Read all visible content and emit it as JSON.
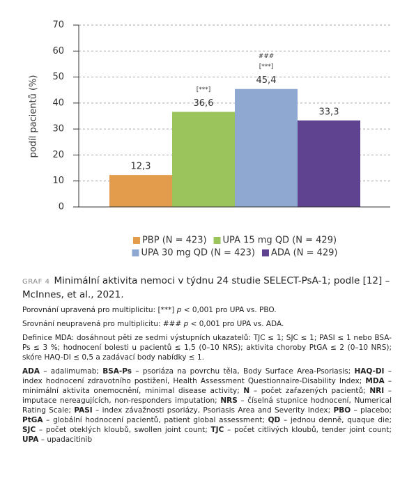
{
  "chart_data": {
    "type": "bar",
    "ylabel": "podíl pacientů (%)",
    "categories": [
      "PBP (N = 423)",
      "UPA 15 mg QD (N = 429)",
      "UPA 30 mg QD (N = 423)",
      "ADA (N = 429)"
    ],
    "values": [
      12.3,
      36.6,
      45.4,
      33.3
    ],
    "value_labels": [
      "12,3",
      "36,6",
      "45,4",
      "33,3"
    ],
    "colors": [
      "#e39b4c",
      "#9cc45c",
      "#8ea8d2",
      "#5f4290"
    ],
    "annotations": [
      null,
      [
        "[***]"
      ],
      [
        "###",
        "[***]"
      ],
      null
    ],
    "ylim": [
      0,
      70
    ],
    "yticks": [
      0,
      10,
      20,
      30,
      40,
      50,
      60,
      70
    ],
    "grid": true
  },
  "caption": {
    "label": "GRAF 4",
    "title": "Minimální aktivita nemoci v týdnu 24 studie SELECT-PsA-1; podle [12] – McInnes, et al., 2021.",
    "notes": [
      {
        "before": "Porovnání upravená pro multiplicitu: [***] ",
        "italic": "p",
        "after": " < 0,001 pro UPA vs. PBO."
      },
      {
        "before": "Srovnání neupravená pro multiplicitu: ### ",
        "italic": "p",
        "after": " < 0,001 pro UPA vs. ADA."
      }
    ],
    "definition": "Definice MDA: dosáhnout pěti ze sedmi výstupních ukazatelů: TJC ≤ 1; SJC ≤ 1; PASI ≤ 1 nebo BSA-Ps ≤ 3 %; hodnocení bolesti u pacientů ≤ 1,5 (0–10 NRS); aktivita choroby PtGA ≤ 2 (0–10 NRS); skóre HAQ-DI ≤ 0,5 a zadávací body nabídky ≤ 1.",
    "glossary": [
      {
        "term": "ADA",
        "text": " – adalimumab; "
      },
      {
        "term": "BSA-Ps",
        "text": " – psoriáza na povrchu těla, Body Surface Area-Psoriasis; "
      },
      {
        "term": "HAQ-DI",
        "text": " – index hodnocení zdravotního postižení, Health Assessment Questionnaire-Disability Index; "
      },
      {
        "term": "MDA",
        "text": " – minimální aktivita onemocnění, minimal disease activity; "
      },
      {
        "term": "N",
        "text": " – počet zařazených pacientů; "
      },
      {
        "term": "NRI",
        "text": " – imputace nereagujících, non-responders imputation; "
      },
      {
        "term": "NRS",
        "text": " – číselná stupnice hodnocení, Numerical Rating Scale; "
      },
      {
        "term": "PASI",
        "text": " – index závažnosti psoriázy, Psoriasis Area and Severity Index; "
      },
      {
        "term": "PBO",
        "text": " – placebo; "
      },
      {
        "term": "PtGA",
        "text": " – globální hodnocení pacientů, patient global assessment; "
      },
      {
        "term": "QD",
        "text": " – jednou denně, quaque die; "
      },
      {
        "term": "SJC",
        "text": " – počet oteklých kloubů, swollen joint count; "
      },
      {
        "term": "TJC",
        "text": " – počet citlivých kloubů, tender joint count; "
      },
      {
        "term": "UPA",
        "text": " – upadacitinib"
      }
    ]
  }
}
